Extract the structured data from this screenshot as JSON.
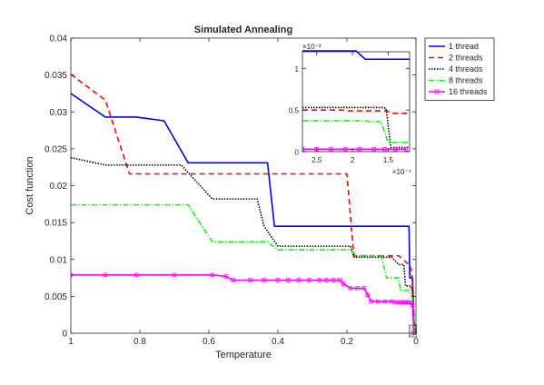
{
  "chart_data": [
    {
      "type": "line",
      "title": "Simulated Annealing",
      "xlabel": "Temperature",
      "ylabel": "Cost function",
      "xlim": [
        1,
        0
      ],
      "ylim": [
        0,
        0.04
      ],
      "x_reversed": true,
      "xticks": [
        1,
        0.8,
        0.6,
        0.4,
        0.2,
        0
      ],
      "xtick_labels": [
        "1",
        "0.8",
        "0.6",
        "0.4",
        "0.2",
        "0"
      ],
      "yticks": [
        0,
        0.005,
        0.01,
        0.015,
        0.02,
        0.025,
        0.03,
        0.035,
        0.04
      ],
      "ytick_labels": [
        "0",
        "0.005",
        "0.01",
        "0.015",
        "0.02",
        "0.025",
        "0.03",
        "0.035",
        "0.04"
      ],
      "legend": "outside-top-right",
      "highlight_box": {
        "x": [
          0.02,
          -0.002
        ],
        "y": [
          0,
          0.0011
        ]
      },
      "series": [
        {
          "name": "1 thread",
          "color": "#0000ff",
          "dash": "solid",
          "marker": "none",
          "points": [
            [
              1,
              0.0325
            ],
            [
              0.9,
              0.0293
            ],
            [
              0.81,
              0.0293
            ],
            [
              0.73,
              0.0288
            ],
            [
              0.66,
              0.0231
            ],
            [
              0.43,
              0.0231
            ],
            [
              0.41,
              0.0145
            ],
            [
              0.02,
              0.0145
            ],
            [
              0.018,
              0.0075
            ],
            [
              0.01,
              0.0075
            ],
            [
              0.006,
              0.0012
            ],
            [
              0.004,
              0.0012
            ],
            [
              0.003,
              0.0011
            ],
            [
              0,
              0.0011
            ]
          ]
        },
        {
          "name": "2 threads",
          "color": "#ff0000",
          "dash": "6,4",
          "marker": "none",
          "points": [
            [
              1,
              0.0351
            ],
            [
              0.9,
              0.0316
            ],
            [
              0.83,
              0.0216
            ],
            [
              0.2,
              0.0216
            ],
            [
              0.18,
              0.0105
            ],
            [
              0.07,
              0.0105
            ],
            [
              0.05,
              0.0105
            ],
            [
              0.025,
              0.0095
            ],
            [
              0.02,
              0.0095
            ],
            [
              0.012,
              0.0083
            ],
            [
              0.01,
              0.0061
            ],
            [
              0.006,
              0.0005
            ],
            [
              0,
              0.00045
            ]
          ]
        },
        {
          "name": "4 threads",
          "color": "#000000",
          "dash": "1.5,1.5",
          "marker": "none",
          "points": [
            [
              1,
              0.0238
            ],
            [
              0.9,
              0.0228
            ],
            [
              0.68,
              0.0228
            ],
            [
              0.59,
              0.0182
            ],
            [
              0.46,
              0.0182
            ],
            [
              0.44,
              0.0145
            ],
            [
              0.4,
              0.0118
            ],
            [
              0.19,
              0.0118
            ],
            [
              0.18,
              0.0103
            ],
            [
              0.08,
              0.0103
            ],
            [
              0.07,
              0.0103
            ],
            [
              0.05,
              0.0093
            ],
            [
              0.035,
              0.0093
            ],
            [
              0.03,
              0.0064
            ],
            [
              0.015,
              0.0064
            ],
            [
              0.008,
              0.0052
            ],
            [
              0.004,
              0.00052
            ],
            [
              0,
              5e-05
            ]
          ]
        },
        {
          "name": "8 threads",
          "color": "#00ff00",
          "dash": "6,2,1.5,2",
          "marker": "none",
          "points": [
            [
              1,
              0.0174
            ],
            [
              0.66,
              0.0174
            ],
            [
              0.59,
              0.0124
            ],
            [
              0.43,
              0.0124
            ],
            [
              0.4,
              0.0113
            ],
            [
              0.19,
              0.0113
            ],
            [
              0.17,
              0.0105
            ],
            [
              0.1,
              0.0105
            ],
            [
              0.085,
              0.0075
            ],
            [
              0.05,
              0.0075
            ],
            [
              0.045,
              0.0058
            ],
            [
              0.02,
              0.0058
            ],
            [
              0.008,
              0.0045
            ],
            [
              0.005,
              0.00037
            ],
            [
              0,
              0.0001
            ]
          ]
        },
        {
          "name": "16 threads",
          "color": "#ff00ff",
          "dash": "solid",
          "marker": "square",
          "points": [
            [
              1,
              0.0079
            ],
            [
              0.9,
              0.0079
            ],
            [
              0.81,
              0.0079
            ],
            [
              0.7,
              0.0079
            ],
            [
              0.59,
              0.0079
            ],
            [
              0.55,
              0.0077
            ],
            [
              0.53,
              0.0072
            ],
            [
              0.48,
              0.0072
            ],
            [
              0.44,
              0.0072
            ],
            [
              0.4,
              0.0072
            ],
            [
              0.37,
              0.0072
            ],
            [
              0.34,
              0.0072
            ],
            [
              0.31,
              0.0072
            ],
            [
              0.28,
              0.0072
            ],
            [
              0.26,
              0.0072
            ],
            [
              0.24,
              0.0072
            ],
            [
              0.22,
              0.0072
            ],
            [
              0.21,
              0.0067
            ],
            [
              0.19,
              0.0061
            ],
            [
              0.17,
              0.0061
            ],
            [
              0.15,
              0.0061
            ],
            [
              0.14,
              0.0052
            ],
            [
              0.13,
              0.0043
            ],
            [
              0.11,
              0.0043
            ],
            [
              0.09,
              0.0043
            ],
            [
              0.07,
              0.0043
            ],
            [
              0.06,
              0.0042
            ],
            [
              0.05,
              0.0042
            ],
            [
              0.045,
              0.0042
            ],
            [
              0.04,
              0.0042
            ],
            [
              0.035,
              0.0042
            ],
            [
              0.03,
              0.0042
            ],
            [
              0.025,
              0.0042
            ],
            [
              0.02,
              0.0042
            ],
            [
              0.015,
              0.0042
            ],
            [
              0.01,
              0.0038
            ],
            [
              0.006,
              3e-05
            ],
            [
              0,
              3e-05
            ]
          ]
        }
      ]
    },
    {
      "type": "line",
      "title": "",
      "xlim": [
        0.00027,
        0.00012
      ],
      "ylim": [
        0,
        0.0012
      ],
      "x_reversed": true,
      "xticks": [
        0.00025,
        0.0002,
        0.00015
      ],
      "xtick_labels": [
        "2.5",
        "2",
        "1.5"
      ],
      "x_multiplier": "×10⁻⁴",
      "yticks": [
        0,
        0.0005,
        0.001
      ],
      "ytick_labels": [
        "0",
        "0.5",
        "1"
      ],
      "y_multiplier": "×10⁻³",
      "series": [
        {
          "name": "1 thread",
          "color": "#0000ff",
          "dash": "solid",
          "marker": "none",
          "points": [
            [
              0.00027,
              0.00121
            ],
            [
              0.000195,
              0.00121
            ],
            [
              0.000182,
              0.00111
            ],
            [
              0.00012,
              0.00111
            ]
          ]
        },
        {
          "name": "2 threads",
          "color": "#ff0000",
          "dash": "6,4",
          "marker": "none",
          "points": [
            [
              0.00027,
              0.0005
            ],
            [
              0.000215,
              0.0005
            ],
            [
              0.000205,
              0.00049
            ],
            [
              0.000152,
              0.00049
            ],
            [
              0.000145,
              0.00046
            ],
            [
              0.00012,
              0.00046
            ]
          ]
        },
        {
          "name": "4 threads",
          "color": "#000000",
          "dash": "1.5,1.5",
          "marker": "none",
          "points": [
            [
              0.00027,
              0.00053
            ],
            [
              0.000158,
              0.00053
            ],
            [
              0.000153,
              0.00052
            ],
            [
              0.000146,
              5e-05
            ],
            [
              0.00012,
              5e-05
            ]
          ]
        },
        {
          "name": "8 threads",
          "color": "#00ff00",
          "dash": "6,2,1.5,2",
          "marker": "none",
          "points": [
            [
              0.00027,
              0.00037
            ],
            [
              0.000182,
              0.00037
            ],
            [
              0.000176,
              0.00036
            ],
            [
              0.00016,
              0.00036
            ],
            [
              0.00015,
              0.00011
            ],
            [
              0.00012,
              0.00011
            ]
          ]
        },
        {
          "name": "16 threads",
          "color": "#ff00ff",
          "dash": "solid",
          "marker": "square",
          "points": [
            [
              0.00027,
              3e-05
            ],
            [
              0.00025,
              3e-05
            ],
            [
              0.00023,
              3e-05
            ],
            [
              0.00021,
              3e-05
            ],
            [
              0.00019,
              3e-05
            ],
            [
              0.00017,
              3e-05
            ],
            [
              0.000155,
              3e-05
            ],
            [
              0.00014,
              3e-05
            ],
            [
              0.000125,
              3e-05
            ]
          ]
        }
      ]
    }
  ]
}
